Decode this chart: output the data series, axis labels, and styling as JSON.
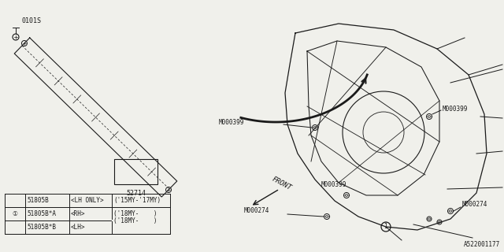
{
  "bg_color": "#f0f0eb",
  "line_color": "#1a1a1a",
  "diagram_id": "A522001177",
  "part_number_label": "52714",
  "bolt_label_0101S": "0101S",
  "front_label": "FRONT",
  "table_rows": [
    [
      "",
      "51805B",
      "<LH ONLY>",
      "('15MY-'17MY)"
    ],
    [
      "①",
      "51805B*A",
      "<RH>",
      "('18MY-    )"
    ],
    [
      "",
      "51805B*B",
      "<LH>",
      ""
    ]
  ]
}
